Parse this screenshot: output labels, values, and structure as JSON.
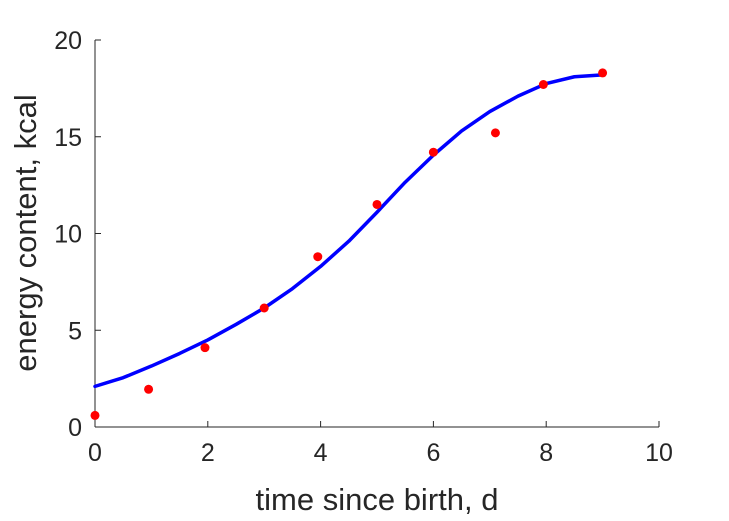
{
  "chart_data": {
    "type": "scatter",
    "title": "",
    "xlabel": "time since birth, d",
    "ylabel": "energy content, kcal",
    "xlim": [
      0,
      10
    ],
    "ylim": [
      0,
      20
    ],
    "xticks": [
      0,
      2,
      4,
      6,
      8,
      10
    ],
    "yticks": [
      0,
      5,
      10,
      15,
      20
    ],
    "grid": false,
    "box": false,
    "series": [
      {
        "kind": "points",
        "color": "#ff0000",
        "x": [
          0,
          0.95,
          1.95,
          3.0,
          3.95,
          5.0,
          6.0,
          7.1,
          7.95,
          9.0
        ],
        "y": [
          0.6,
          1.95,
          4.1,
          6.15,
          8.8,
          11.5,
          14.2,
          15.2,
          17.7,
          18.3
        ]
      },
      {
        "kind": "curve",
        "color": "#0000ff",
        "x": [
          0,
          0.5,
          1,
          1.5,
          2,
          2.5,
          3,
          3.5,
          4,
          4.5,
          5,
          5.5,
          6,
          6.5,
          7,
          7.5,
          8,
          8.5,
          9
        ],
        "y": [
          2.1,
          2.55,
          3.15,
          3.8,
          4.5,
          5.3,
          6.15,
          7.15,
          8.3,
          9.6,
          11.1,
          12.65,
          14.05,
          15.3,
          16.3,
          17.1,
          17.75,
          18.1,
          18.2
        ]
      }
    ]
  }
}
